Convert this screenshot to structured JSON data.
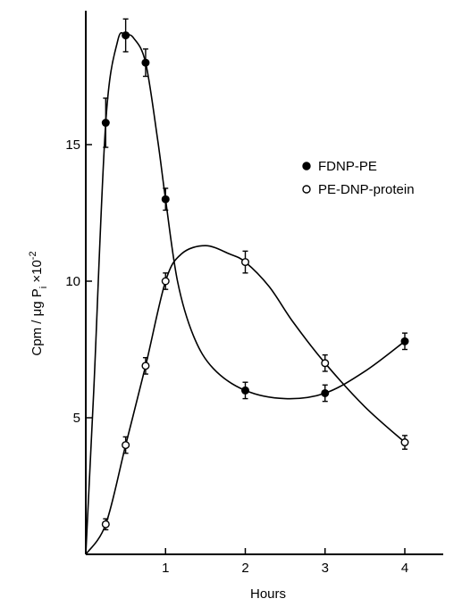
{
  "chart_data": {
    "type": "line",
    "xlabel": "Hours",
    "ylabel_main": "Cpm / μg P",
    "ylabel_sub": "i",
    "ylabel_suffix": " ×10",
    "ylabel_exp": "-2",
    "xlim": [
      0,
      4.5
    ],
    "ylim": [
      0,
      20
    ],
    "x_ticks": [
      1,
      2,
      3,
      4
    ],
    "x_tick_labels": [
      "1",
      "2",
      "3",
      "4"
    ],
    "y_ticks": [
      5,
      10,
      15
    ],
    "y_tick_labels": [
      "5",
      "10",
      "15"
    ],
    "legend_position": "right",
    "series": [
      {
        "name": "FDNP-PE",
        "marker": "filled",
        "points": [
          {
            "x": 0.25,
            "y": 15.8,
            "err": 0.9
          },
          {
            "x": 0.5,
            "y": 19.0,
            "err": 0.6
          },
          {
            "x": 0.75,
            "y": 18.0,
            "err": 0.5
          },
          {
            "x": 1.0,
            "y": 13.0,
            "err": 0.4
          },
          {
            "x": 2.0,
            "y": 6.0,
            "err": 0.3
          },
          {
            "x": 3.0,
            "y": 5.9,
            "err": 0.3
          },
          {
            "x": 4.0,
            "y": 7.8,
            "err": 0.3
          }
        ],
        "curve": [
          [
            0,
            0
          ],
          [
            0.1,
            6
          ],
          [
            0.25,
            15.8
          ],
          [
            0.4,
            18.8
          ],
          [
            0.5,
            19.0
          ],
          [
            0.6,
            18.9
          ],
          [
            0.75,
            18.0
          ],
          [
            0.9,
            15.2
          ],
          [
            1.0,
            13.0
          ],
          [
            1.15,
            10.0
          ],
          [
            1.35,
            8.0
          ],
          [
            1.6,
            6.8
          ],
          [
            2.0,
            6.0
          ],
          [
            2.5,
            5.7
          ],
          [
            3.0,
            5.9
          ],
          [
            3.5,
            6.7
          ],
          [
            4.0,
            7.8
          ]
        ]
      },
      {
        "name": "PE-DNP-protein",
        "marker": "open",
        "points": [
          {
            "x": 0.25,
            "y": 1.1,
            "err": 0.2
          },
          {
            "x": 0.5,
            "y": 4.0,
            "err": 0.3
          },
          {
            "x": 0.75,
            "y": 6.9,
            "err": 0.3
          },
          {
            "x": 1.0,
            "y": 10.0,
            "err": 0.3
          },
          {
            "x": 2.0,
            "y": 10.7,
            "err": 0.4
          },
          {
            "x": 3.0,
            "y": 7.0,
            "err": 0.3
          },
          {
            "x": 4.0,
            "y": 4.1,
            "err": 0.25
          }
        ],
        "curve": [
          [
            0,
            0
          ],
          [
            0.25,
            1.1
          ],
          [
            0.5,
            4.0
          ],
          [
            0.75,
            6.9
          ],
          [
            1.0,
            10.0
          ],
          [
            1.2,
            11.0
          ],
          [
            1.5,
            11.3
          ],
          [
            1.8,
            11.0
          ],
          [
            2.0,
            10.7
          ],
          [
            2.3,
            9.8
          ],
          [
            2.6,
            8.5
          ],
          [
            3.0,
            7.0
          ],
          [
            3.5,
            5.4
          ],
          [
            4.0,
            4.1
          ]
        ]
      }
    ]
  }
}
